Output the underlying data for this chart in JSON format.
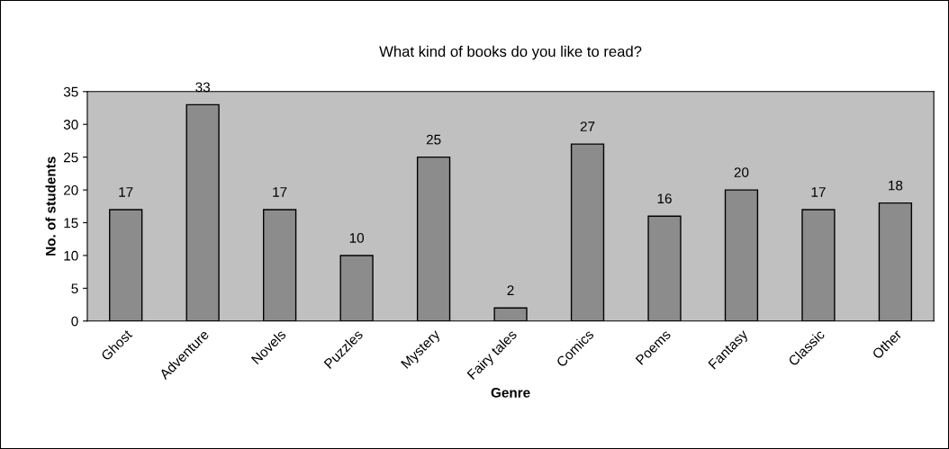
{
  "chart_data": {
    "type": "bar",
    "title": "What kind of books do you like to read?",
    "xlabel": "Genre",
    "ylabel": "No. of students",
    "categories": [
      "Ghost",
      "Adventure",
      "Novels",
      "Puzzles",
      "Mystery",
      "Fairy tales",
      "Comics",
      "Poems",
      "Fantasy",
      "Classic",
      "Other"
    ],
    "values": [
      17,
      33,
      17,
      10,
      25,
      2,
      27,
      16,
      20,
      17,
      18
    ],
    "color": "#8c8c8c",
    "ylim": [
      0,
      35
    ],
    "yticks": [
      0,
      5,
      10,
      15,
      20,
      25,
      30,
      35
    ],
    "data_labels": true,
    "grid": false,
    "legend": false
  }
}
